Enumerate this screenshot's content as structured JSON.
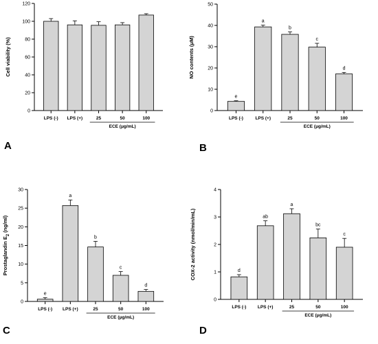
{
  "chart_data": [
    {
      "panel": "A",
      "type": "bar",
      "ylabel": "Cell viability (%)",
      "ylim": [
        0,
        120
      ],
      "yticks": [
        0,
        20,
        40,
        60,
        80,
        100,
        120
      ],
      "categories": [
        "LPS (-)",
        "LPS (+)",
        "25",
        "50",
        "100"
      ],
      "group_label": "ECE (μg/mL)",
      "values": [
        100,
        96,
        95.5,
        96,
        107
      ],
      "errors": [
        3,
        4.5,
        4,
        2.5,
        1.5
      ],
      "letters": [
        "",
        "",
        "",
        "",
        ""
      ],
      "bar_color": "#d4d4d4"
    },
    {
      "panel": "B",
      "type": "bar",
      "ylabel": "NO contents (μM)",
      "ylim": [
        0,
        50
      ],
      "yticks": [
        0,
        10,
        20,
        30,
        40,
        50
      ],
      "categories": [
        "LPS (-)",
        "LPS (+)",
        "25",
        "50",
        "100"
      ],
      "group_label": "ECE (μg/mL)",
      "values": [
        4.3,
        39.3,
        35.8,
        29.8,
        17.2
      ],
      "errors": [
        0.3,
        0.8,
        1.2,
        1.8,
        0.7
      ],
      "letters": [
        "e",
        "a",
        "b",
        "c",
        "d"
      ],
      "bar_color": "#d4d4d4"
    },
    {
      "panel": "C",
      "type": "bar",
      "ylabel": "Prostaglandin E",
      "ylabel_sub": "2",
      "ylabel_unit": " (ng/ml)",
      "ylim": [
        0,
        30
      ],
      "yticks": [
        0,
        5,
        10,
        15,
        20,
        25,
        30
      ],
      "categories": [
        "LPS (-)",
        "LPS (+)",
        "25",
        "50",
        "100"
      ],
      "group_label": "ECE (μg/mL)",
      "values": [
        0.6,
        25.7,
        14.6,
        7.0,
        2.7
      ],
      "errors": [
        0.4,
        1.5,
        1.5,
        1.0,
        0.5
      ],
      "letters": [
        "e",
        "a",
        "b",
        "c",
        "d"
      ],
      "bar_color": "#d4d4d4"
    },
    {
      "panel": "D",
      "type": "bar",
      "ylabel": "COX-2 activity (nmol/min/mL)",
      "ylim": [
        0,
        4
      ],
      "yticks": [
        0,
        1,
        2,
        3,
        4
      ],
      "categories": [
        "LPS (-)",
        "LPS (+)",
        "25",
        "50",
        "100"
      ],
      "group_label": "ECE (μg/mL)",
      "values": [
        0.82,
        2.68,
        3.12,
        2.24,
        1.9
      ],
      "errors": [
        0.08,
        0.18,
        0.18,
        0.32,
        0.32
      ],
      "letters": [
        "d",
        "ab",
        "a",
        "bc",
        "c"
      ],
      "bar_color": "#d4d4d4"
    }
  ]
}
